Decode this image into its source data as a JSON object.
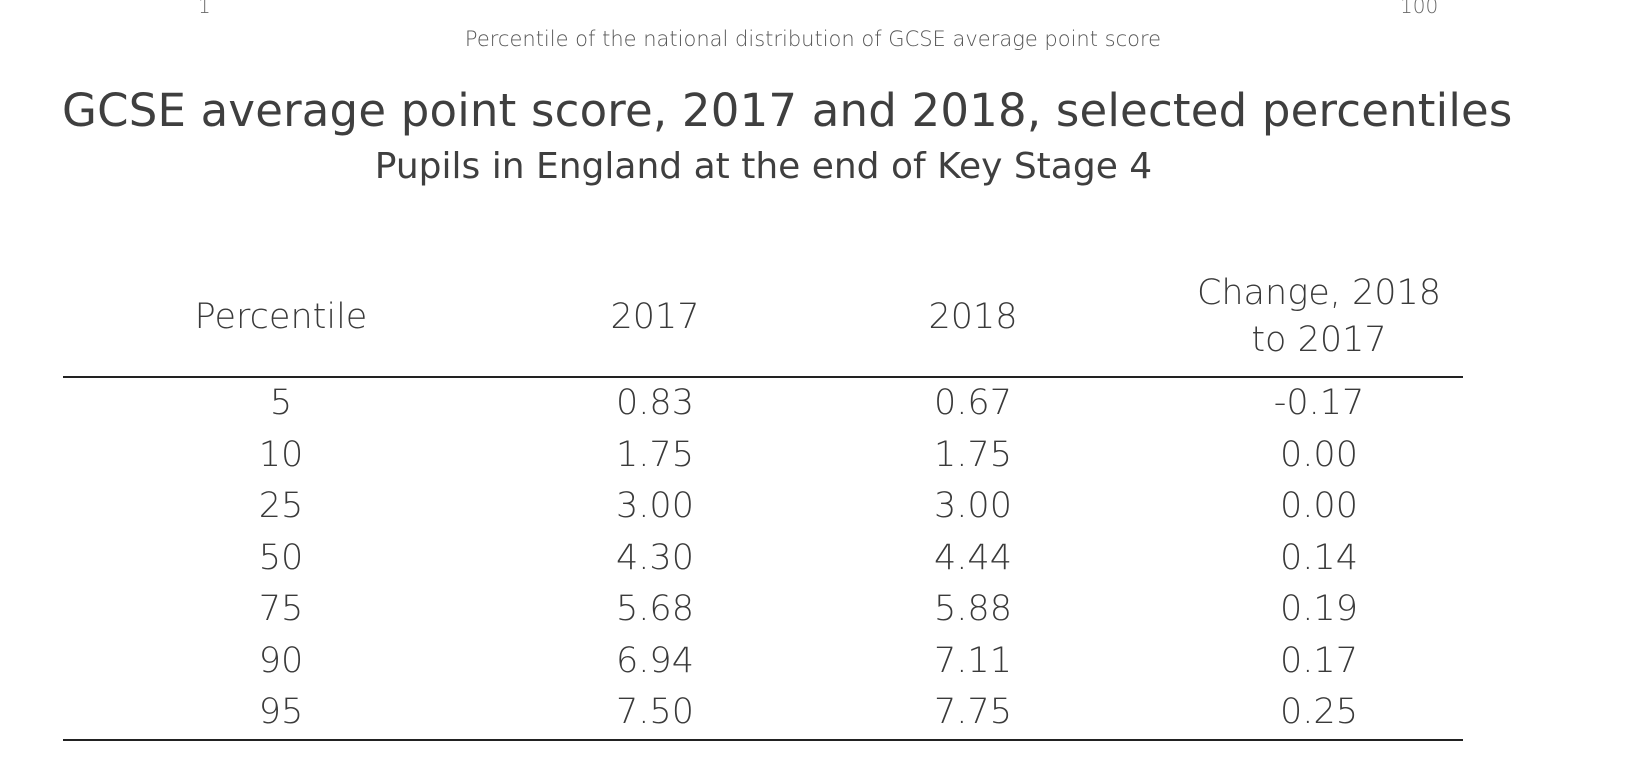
{
  "axis": {
    "tick_min": "1",
    "tick_max": "100",
    "label": "Percentile of the national distribution of GCSE average point score"
  },
  "title": "GCSE average point score, 2017 and 2018, selected percentiles",
  "subtitle": "Pupils in England at the end of Key Stage 4",
  "table": {
    "headers": [
      "Percentile",
      "2017",
      "2018",
      "Change, 2018 to 2017"
    ],
    "rows": [
      [
        "5",
        "0.83",
        "0.67",
        "-0.17"
      ],
      [
        "10",
        "1.75",
        "1.75",
        "0.00"
      ],
      [
        "25",
        "3.00",
        "3.00",
        "0.00"
      ],
      [
        "50",
        "4.30",
        "4.44",
        "0.14"
      ],
      [
        "75",
        "5.68",
        "5.88",
        "0.19"
      ],
      [
        "90",
        "6.94",
        "7.11",
        "0.17"
      ],
      [
        "95",
        "7.50",
        "7.75",
        "0.25"
      ]
    ]
  }
}
